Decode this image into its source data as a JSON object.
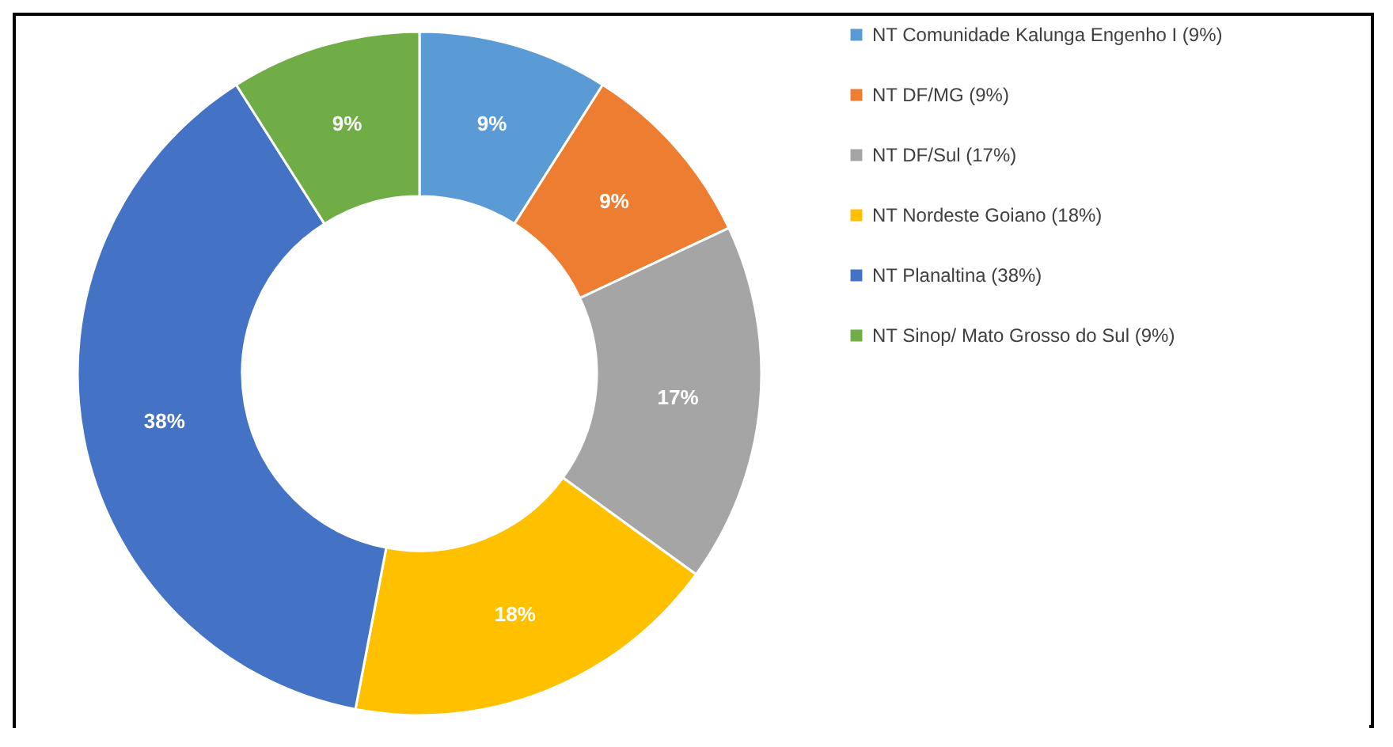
{
  "chart_data": {
    "type": "donut",
    "categories": [
      "NT Comunidade Kalunga Engenho I (9%)",
      "NT DF/MG (9%)",
      "NT DF/Sul (17%)",
      "NT Nordeste Goiano (18%)",
      "NT Planaltina (38%)",
      "NT Sinop/ Mato Grosso do Sul (9%)"
    ],
    "values": [
      9,
      9,
      17,
      18,
      38,
      9
    ],
    "colors": [
      "#5b9bd5",
      "#ed7d31",
      "#a5a5a5",
      "#ffc000",
      "#4472c4",
      "#70ad47"
    ],
    "value_labels": [
      "9%",
      "9%",
      "17%",
      "18%",
      "38%",
      "9%"
    ],
    "legend": "right"
  }
}
